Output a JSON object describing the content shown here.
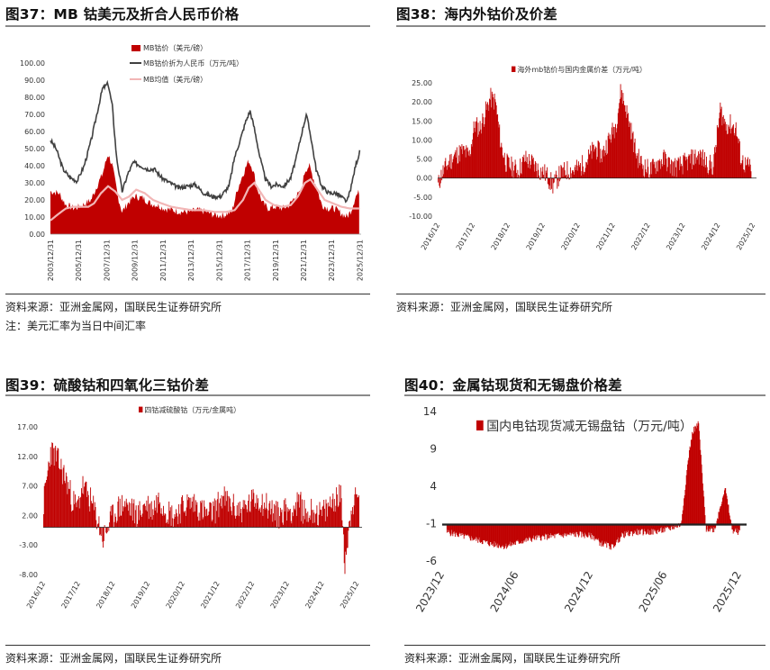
{
  "panels": {
    "p37": {
      "title": "图37：MB 钴美元及折合人民币价格",
      "source": "资料来源：亚洲金属网，国联民生证券研究所",
      "note": "注：美元汇率为当日中间汇率"
    },
    "p38": {
      "title": "图38：海内外钴价及价差",
      "source": "资料来源：亚洲金属网，国联民生证券研究所"
    },
    "p39": {
      "title": "图39：硫酸钴和四氧化三钴价差",
      "source": "资料来源：亚洲金属网，国联民生证券研究所"
    },
    "p40": {
      "title": "图40：金属钴现货和无锡盘价格差",
      "source": "资料来源：亚洲金属网，国联民生证券研究所"
    }
  },
  "colors": {
    "red": "#c00000",
    "dark": "#404040",
    "pink": "#f2b6b6"
  },
  "chart_data": [
    {
      "id": "p37",
      "type": "area",
      "ylim": [
        0,
        100
      ],
      "yticks": [
        "100.00",
        "90.00",
        "80.00",
        "70.00",
        "60.00",
        "50.00",
        "40.00",
        "30.00",
        "20.00",
        "10.00",
        "0.00"
      ],
      "xticks": [
        "2003/12/31",
        "2005/12/31",
        "2007/12/31",
        "2009/12/31",
        "2011/12/31",
        "2013/12/31",
        "2015/12/31",
        "2017/12/31",
        "2019/12/31",
        "2021/12/31",
        "2023/12/31",
        "2025/12/31"
      ],
      "xrange": [
        2003.9,
        2026.0
      ],
      "legend": [
        "MB钴价（美元/磅）",
        "MB钴价折为人民币（万元/吨）",
        "MB均值（美元/磅）"
      ],
      "series": [
        {
          "name": "MB钴价（美元/磅）",
          "kind": "area",
          "x": [
            2003.9,
            2004.5,
            2005.0,
            2005.6,
            2006.2,
            2006.8,
            2007.2,
            2007.6,
            2008.0,
            2008.3,
            2008.7,
            2009.0,
            2009.4,
            2009.9,
            2010.5,
            2011.0,
            2011.5,
            2012.0,
            2012.6,
            2013.2,
            2013.8,
            2014.4,
            2015.0,
            2015.6,
            2016.2,
            2016.8,
            2017.2,
            2017.6,
            2018.0,
            2018.3,
            2018.6,
            2019.0,
            2019.4,
            2019.9,
            2020.4,
            2020.9,
            2021.3,
            2021.7,
            2022.0,
            2022.3,
            2022.8,
            2023.2,
            2023.7,
            2024.1,
            2024.6,
            2025.0,
            2025.3,
            2025.6,
            2025.9
          ],
          "values": [
            25,
            24,
            17,
            15,
            17,
            20,
            28,
            35,
            47,
            40,
            22,
            13,
            18,
            22,
            21,
            18,
            17,
            15,
            14,
            13,
            13,
            14,
            13,
            11,
            11,
            13,
            26,
            35,
            43,
            38,
            27,
            18,
            15,
            16,
            15,
            17,
            22,
            24,
            37,
            40,
            28,
            17,
            15,
            15,
            12,
            10,
            14,
            22,
            25
          ]
        },
        {
          "name": "MB钴价折为人民币（万元/吨）",
          "kind": "line",
          "x": [
            2003.9,
            2004.3,
            2004.8,
            2005.3,
            2005.8,
            2006.3,
            2006.8,
            2007.2,
            2007.6,
            2008.0,
            2008.3,
            2008.6,
            2009.0,
            2009.4,
            2009.8,
            2010.3,
            2010.8,
            2011.3,
            2011.8,
            2012.4,
            2013.0,
            2013.6,
            2014.2,
            2014.8,
            2015.4,
            2016.0,
            2016.6,
            2017.0,
            2017.4,
            2017.8,
            2018.1,
            2018.4,
            2018.8,
            2019.2,
            2019.6,
            2020.0,
            2020.5,
            2021.0,
            2021.4,
            2021.8,
            2022.1,
            2022.4,
            2022.8,
            2023.2,
            2023.7,
            2024.2,
            2024.7,
            2025.0,
            2025.3,
            2025.6,
            2025.9
          ],
          "values": [
            55,
            50,
            38,
            33,
            31,
            40,
            55,
            70,
            85,
            88,
            75,
            45,
            25,
            35,
            42,
            40,
            38,
            38,
            33,
            30,
            27,
            28,
            29,
            24,
            22,
            22,
            28,
            45,
            55,
            66,
            72,
            62,
            45,
            32,
            28,
            29,
            28,
            33,
            45,
            60,
            70,
            58,
            38,
            28,
            24,
            24,
            21,
            19,
            28,
            40,
            48
          ]
        },
        {
          "name": "MB均值（美元/磅）",
          "kind": "line",
          "x": [
            2003.9,
            2004.5,
            2005.0,
            2005.5,
            2006.0,
            2006.6,
            2007.0,
            2007.5,
            2008.0,
            2008.5,
            2009.0,
            2009.5,
            2010.0,
            2010.6,
            2011.2,
            2011.8,
            2012.5,
            2013.2,
            2014.0,
            2014.8,
            2015.6,
            2016.4,
            2017.0,
            2017.6,
            2018.0,
            2018.4,
            2018.8,
            2019.2,
            2019.8,
            2020.4,
            2021.0,
            2021.5,
            2022.0,
            2022.4,
            2022.9,
            2023.4,
            2024.0,
            2024.6,
            2025.2,
            2025.9
          ],
          "values": [
            8,
            12,
            15,
            16,
            16,
            16,
            18,
            24,
            28,
            25,
            20,
            22,
            26,
            24,
            20,
            18,
            16,
            15,
            14,
            14,
            13,
            13,
            14,
            20,
            27,
            30,
            25,
            20,
            17,
            16,
            17,
            22,
            30,
            32,
            26,
            20,
            18,
            16,
            15,
            15
          ]
        }
      ]
    },
    {
      "id": "p38",
      "type": "bar",
      "ylim": [
        -10,
        25
      ],
      "yticks": [
        "25.00",
        "20.00",
        "15.00",
        "10.00",
        "5.00",
        "0.00",
        "-5.00",
        "-10.00"
      ],
      "xticks": [
        "2016/12",
        "2017/12",
        "2018/12",
        "2019/12",
        "2020/12",
        "2021/12",
        "2022/12",
        "2023/12",
        "2024/12",
        "2025/12"
      ],
      "xrange": [
        2016.9,
        2026.05
      ],
      "legend": [
        "海外mb钴价与国内金属价差（万元/吨）"
      ],
      "series": [
        {
          "name": "海外mb钴价与国内金属价差（万元/吨）",
          "x": [
            2016.9,
            2017.0,
            2017.2,
            2017.4,
            2017.6,
            2017.8,
            2017.95,
            2018.1,
            2018.25,
            2018.4,
            2018.55,
            2018.7,
            2018.85,
            2019.0,
            2019.2,
            2019.4,
            2019.6,
            2019.8,
            2020.0,
            2020.2,
            2020.4,
            2020.6,
            2020.8,
            2021.0,
            2021.2,
            2021.4,
            2021.6,
            2021.8,
            2022.0,
            2022.15,
            2022.3,
            2022.45,
            2022.6,
            2022.8,
            2023.0,
            2023.2,
            2023.4,
            2023.6,
            2023.8,
            2024.0,
            2024.2,
            2024.4,
            2024.6,
            2024.8,
            2025.0,
            2025.15,
            2025.3,
            2025.45,
            2025.6,
            2025.75,
            2025.9
          ],
          "values": [
            -2,
            1,
            4,
            6,
            7,
            6,
            14,
            13,
            17,
            21,
            20,
            9,
            4,
            3,
            2,
            5,
            4,
            2,
            1,
            -2,
            1,
            2,
            2,
            3,
            5,
            8,
            6,
            10,
            14,
            23,
            18,
            12,
            6,
            3,
            2,
            4,
            5,
            3,
            3,
            4,
            5,
            6,
            4,
            3,
            18,
            14,
            14,
            13,
            5,
            3,
            3
          ]
        }
      ]
    },
    {
      "id": "p39",
      "type": "bar",
      "ylim": [
        -8,
        17
      ],
      "yticks": [
        "17.00",
        "12.00",
        "7.00",
        "2.00",
        "-3.00",
        "-8.00"
      ],
      "xticks": [
        "2016/12",
        "2017/12",
        "2018/12",
        "2019/12",
        "2020/12",
        "2021/12",
        "2022/12",
        "2023/12",
        "2024/12",
        "2025/12"
      ],
      "xrange": [
        2016.9,
        2026.0
      ],
      "legend": [
        "四钴减硫酸钴（万元/金属吨）"
      ],
      "series": [
        {
          "name": "四钴减硫酸钴（万元/金属吨）",
          "x": [
            2016.9,
            2017.1,
            2017.25,
            2017.4,
            2017.55,
            2017.7,
            2017.85,
            2018.0,
            2018.2,
            2018.4,
            2018.6,
            2018.8,
            2019.0,
            2019.2,
            2019.4,
            2019.6,
            2019.8,
            2020.0,
            2020.2,
            2020.4,
            2020.6,
            2020.8,
            2021.0,
            2021.2,
            2021.4,
            2021.6,
            2021.8,
            2022.0,
            2022.2,
            2022.4,
            2022.6,
            2022.8,
            2023.0,
            2023.2,
            2023.4,
            2023.6,
            2023.8,
            2024.0,
            2024.2,
            2024.4,
            2024.6,
            2024.8,
            2025.0,
            2025.2,
            2025.4,
            2025.5,
            2025.7,
            2025.9
          ],
          "values": [
            4,
            13,
            12,
            10,
            8,
            5,
            3,
            7,
            5,
            2,
            -2,
            1,
            3,
            4,
            3,
            2,
            4,
            3,
            5,
            3,
            2,
            3,
            4,
            4,
            3,
            2,
            3,
            5,
            4,
            3,
            3,
            4,
            5,
            4,
            3,
            2,
            3,
            3,
            4,
            2,
            3,
            2,
            3,
            5,
            5,
            -6,
            4,
            5
          ]
        }
      ]
    },
    {
      "id": "p40",
      "type": "bar",
      "ylim": [
        -6,
        14
      ],
      "yticks": [
        "14",
        "9",
        "4",
        "-1",
        "-6"
      ],
      "xticks": [
        "2023/12",
        "2024/06",
        "2024/12",
        "2025/06",
        "2025/12"
      ],
      "xrange": [
        2023.92,
        2026.0
      ],
      "baseline": -1,
      "legend": [
        "国内电钴现货减无锡盘钴（万元/吨）"
      ],
      "series": [
        {
          "name": "国内电钴现货减无锡盘钴（万元/吨）",
          "x": [
            2023.95,
            2024.05,
            2024.15,
            2024.25,
            2024.35,
            2024.45,
            2024.55,
            2024.65,
            2024.75,
            2024.85,
            2024.95,
            2025.0,
            2025.08,
            2025.15,
            2025.25,
            2025.35,
            2025.45,
            2025.5,
            2025.55,
            2025.6,
            2025.63,
            2025.67,
            2025.72,
            2025.78,
            2025.85,
            2025.9,
            2025.95
          ],
          "values": [
            -2.0,
            -2.5,
            -3.0,
            -3.6,
            -3.9,
            -3.3,
            -2.8,
            -2.6,
            -2.4,
            -2.3,
            -2.6,
            -3.5,
            -4.0,
            -2.4,
            -2.0,
            -2.0,
            -1.7,
            -1.3,
            -1.0,
            8.0,
            11.5,
            12.5,
            -1.6,
            -1.6,
            4.0,
            -1.8,
            -2.0
          ]
        }
      ]
    }
  ]
}
